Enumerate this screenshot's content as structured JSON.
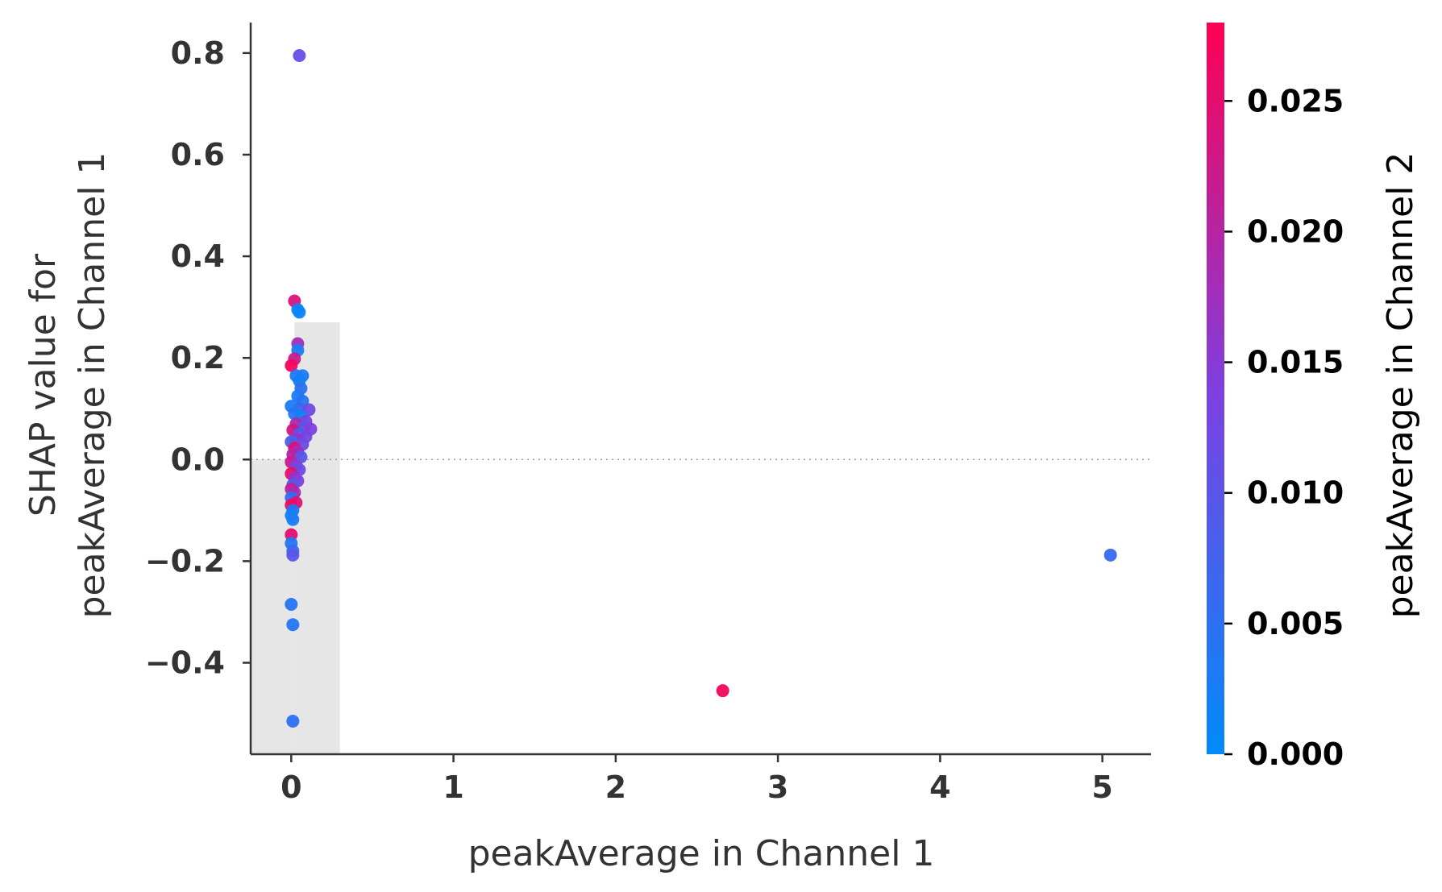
{
  "chart_data": {
    "type": "scatter",
    "xlabel": "peakAverage in Channel 1",
    "ylabel_line1": "SHAP value for",
    "ylabel_line2": "peakAverage in Channel 1",
    "xlim": [
      -0.25,
      5.3
    ],
    "ylim": [
      -0.58,
      0.86
    ],
    "x_ticks": [
      0,
      1,
      2,
      3,
      4,
      5
    ],
    "x_tick_labels": [
      "0",
      "1",
      "2",
      "3",
      "4",
      "5"
    ],
    "y_ticks": [
      -0.4,
      -0.2,
      0.0,
      0.2,
      0.4,
      0.6,
      0.8
    ],
    "y_tick_labels": [
      "−0.4",
      "−0.2",
      "0.0",
      "0.2",
      "0.4",
      "0.6",
      "0.8"
    ],
    "zero_line": true,
    "grid": false,
    "colorbar": {
      "title": "peakAverage in Channel 2",
      "range": [
        0.0,
        0.028
      ],
      "ticks": [
        0.0,
        0.005,
        0.01,
        0.015,
        0.02,
        0.025
      ],
      "tick_labels": [
        "0.000",
        "0.005",
        "0.010",
        "0.015",
        "0.020",
        "0.025"
      ],
      "color_low": "#008bfb",
      "color_mid": "#7f3fe0",
      "color_high": "#ff0051"
    },
    "histogram": {
      "color": "#e6e6e6",
      "bins": [
        {
          "x0": -0.25,
          "x1": 0.02,
          "value": 0.0
        },
        {
          "x0": 0.02,
          "x1": 0.3,
          "value": 0.27
        }
      ]
    },
    "points": [
      {
        "x": 0.05,
        "y": 0.795,
        "c": 0.011
      },
      {
        "x": 0.02,
        "y": 0.312,
        "c": 0.024
      },
      {
        "x": 0.04,
        "y": 0.295,
        "c": 0.002
      },
      {
        "x": 0.05,
        "y": 0.29,
        "c": 0.001
      },
      {
        "x": 0.04,
        "y": 0.228,
        "c": 0.018
      },
      {
        "x": 0.04,
        "y": 0.215,
        "c": 0.003
      },
      {
        "x": 0.02,
        "y": 0.198,
        "c": 0.022
      },
      {
        "x": 0.0,
        "y": 0.185,
        "c": 0.027
      },
      {
        "x": 0.03,
        "y": 0.165,
        "c": 0.004
      },
      {
        "x": 0.07,
        "y": 0.165,
        "c": 0.003
      },
      {
        "x": 0.05,
        "y": 0.155,
        "c": 0.002
      },
      {
        "x": 0.06,
        "y": 0.14,
        "c": 0.005
      },
      {
        "x": 0.04,
        "y": 0.125,
        "c": 0.003
      },
      {
        "x": 0.07,
        "y": 0.115,
        "c": 0.004
      },
      {
        "x": 0.0,
        "y": 0.105,
        "c": 0.003
      },
      {
        "x": 0.05,
        "y": 0.1,
        "c": 0.006
      },
      {
        "x": 0.11,
        "y": 0.098,
        "c": 0.012
      },
      {
        "x": 0.02,
        "y": 0.09,
        "c": 0.004
      },
      {
        "x": 0.06,
        "y": 0.085,
        "c": 0.002
      },
      {
        "x": 0.09,
        "y": 0.075,
        "c": 0.013
      },
      {
        "x": 0.03,
        "y": 0.07,
        "c": 0.019
      },
      {
        "x": 0.08,
        "y": 0.065,
        "c": 0.011
      },
      {
        "x": 0.12,
        "y": 0.06,
        "c": 0.014
      },
      {
        "x": 0.01,
        "y": 0.058,
        "c": 0.023
      },
      {
        "x": 0.05,
        "y": 0.05,
        "c": 0.009
      },
      {
        "x": 0.09,
        "y": 0.045,
        "c": 0.013
      },
      {
        "x": 0.03,
        "y": 0.04,
        "c": 0.016
      },
      {
        "x": 0.0,
        "y": 0.035,
        "c": 0.008
      },
      {
        "x": 0.07,
        "y": 0.03,
        "c": 0.012
      },
      {
        "x": 0.02,
        "y": 0.022,
        "c": 0.025
      },
      {
        "x": 0.04,
        "y": 0.015,
        "c": 0.017
      },
      {
        "x": 0.01,
        "y": 0.01,
        "c": 0.02
      },
      {
        "x": 0.06,
        "y": 0.005,
        "c": 0.01
      },
      {
        "x": 0.0,
        "y": -0.005,
        "c": 0.022
      },
      {
        "x": 0.03,
        "y": -0.012,
        "c": 0.015
      },
      {
        "x": 0.05,
        "y": -0.02,
        "c": 0.012
      },
      {
        "x": 0.0,
        "y": -0.028,
        "c": 0.026
      },
      {
        "x": 0.02,
        "y": -0.035,
        "c": 0.018
      },
      {
        "x": 0.04,
        "y": -0.042,
        "c": 0.014
      },
      {
        "x": 0.01,
        "y": -0.05,
        "c": 0.009
      },
      {
        "x": 0.0,
        "y": -0.058,
        "c": 0.021
      },
      {
        "x": 0.02,
        "y": -0.065,
        "c": 0.019
      },
      {
        "x": 0.0,
        "y": -0.075,
        "c": 0.006
      },
      {
        "x": 0.03,
        "y": -0.085,
        "c": 0.024
      },
      {
        "x": 0.0,
        "y": -0.09,
        "c": 0.027
      },
      {
        "x": 0.01,
        "y": -0.1,
        "c": 0.004
      },
      {
        "x": 0.0,
        "y": -0.11,
        "c": 0.002
      },
      {
        "x": 0.01,
        "y": -0.118,
        "c": 0.003
      },
      {
        "x": 0.0,
        "y": -0.148,
        "c": 0.025
      },
      {
        "x": 0.0,
        "y": -0.165,
        "c": 0.004
      },
      {
        "x": 0.01,
        "y": -0.18,
        "c": 0.006
      },
      {
        "x": 0.01,
        "y": -0.188,
        "c": 0.01
      },
      {
        "x": 0.0,
        "y": -0.285,
        "c": 0.004
      },
      {
        "x": 0.01,
        "y": -0.325,
        "c": 0.004
      },
      {
        "x": 0.01,
        "y": -0.515,
        "c": 0.005
      },
      {
        "x": 2.66,
        "y": -0.455,
        "c": 0.027
      },
      {
        "x": 5.05,
        "y": -0.188,
        "c": 0.006
      }
    ]
  }
}
